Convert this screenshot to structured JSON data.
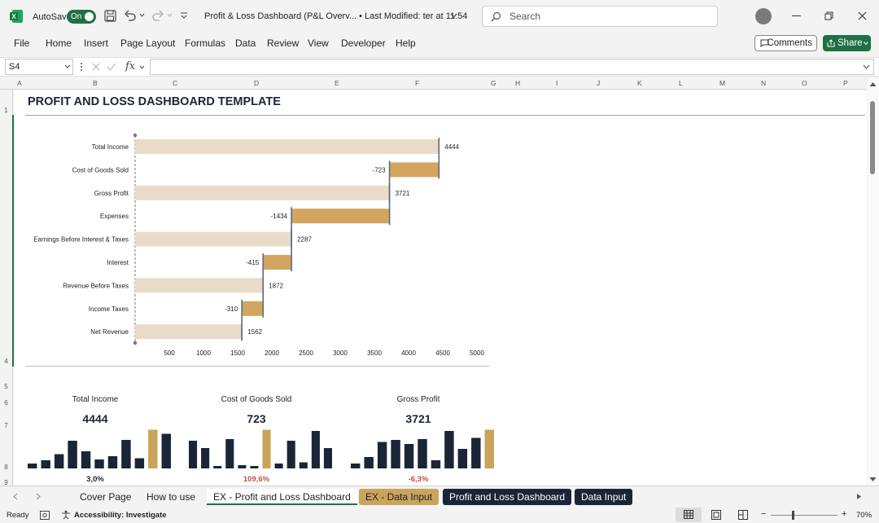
{
  "titlebar": {
    "autosave_label": "AutoSave",
    "autosave_state": "On",
    "doc_title": "Profit & Loss Dashboard (P&L Overv...  • Last Modified: ter at 11:54",
    "search_placeholder": "Search"
  },
  "menu": {
    "items": [
      "File",
      "Home",
      "Insert",
      "Page Layout",
      "Formulas",
      "Data",
      "Review",
      "View",
      "Developer",
      "Help"
    ],
    "comments_label": "Comments",
    "share_label": "Share"
  },
  "formula_bar": {
    "name_box": "S4",
    "fx_label": "fx",
    "formula": ""
  },
  "columns": [
    "A",
    "B",
    "C",
    "D",
    "E",
    "F",
    "G",
    "H",
    "I",
    "J",
    "K",
    "L",
    "M",
    "N",
    "O",
    "P"
  ],
  "rows": [
    "1",
    "4",
    "5",
    "6",
    "7",
    "8",
    "9"
  ],
  "sheet": {
    "title": "PROFIT AND LOSS DASHBOARD TEMPLATE"
  },
  "chart_data": {
    "type": "bar",
    "orientation": "horizontal-waterfall",
    "categories": [
      "Total Income",
      "Cost of Goods Sold",
      "Gross Profit",
      "Expenses",
      "Earnings Before Interest & Taxes",
      "Interest",
      "Revenue Before Taxes",
      "Income Taxes",
      "Net Revenue"
    ],
    "values": [
      4444,
      -723,
      3721,
      -1434,
      2287,
      -415,
      1872,
      -310,
      1562
    ],
    "value_labels": [
      "4444",
      "-723",
      "3721",
      "-1434",
      "2287",
      "-415",
      "1872",
      "-310",
      "1562"
    ],
    "ticks": [
      500,
      1000,
      1500,
      2000,
      2500,
      3000,
      3500,
      4000,
      4500,
      5000
    ],
    "xlim": [
      0,
      5000
    ],
    "colors": {
      "total": "#e8dcc8",
      "change": "#d3a55f",
      "connector": "#5a6b80"
    }
  },
  "kpis": [
    {
      "label": "Total Income",
      "value": "4444",
      "pct": "3,0%",
      "pct_color": "#1a2638",
      "bars": [
        0.12,
        0.2,
        0.35,
        0.68,
        0.42,
        0.22,
        0.3,
        0.7,
        0.25,
        0.95,
        0.85
      ],
      "highlight": 9
    },
    {
      "label": "Cost of Goods Sold",
      "value": "723",
      "pct": "109,6%",
      "pct_color": "#c0504d",
      "bars": [
        0.68,
        0.5,
        0.05,
        0.72,
        0.08,
        0.05,
        0.95,
        0.12,
        0.68,
        0.15,
        0.92,
        0.5
      ],
      "highlight": 6
    },
    {
      "label": "Gross Profit",
      "value": "3721",
      "pct": "-6,3%",
      "pct_color": "#c0504d",
      "bars": [
        0.12,
        0.28,
        0.65,
        0.7,
        0.6,
        0.72,
        0.2,
        0.92,
        0.48,
        0.75,
        0.95
      ],
      "highlight": 10
    }
  ],
  "tabs": [
    {
      "label": "Cover Page",
      "style": "plain"
    },
    {
      "label": "How to use",
      "style": "plain"
    },
    {
      "label": "EX - Profit and Loss Dashboard",
      "style": "active"
    },
    {
      "label": "EX - Data Input",
      "style": "gold"
    },
    {
      "label": "Profit and Loss Dashboard",
      "style": "navy"
    },
    {
      "label": "Data Input",
      "style": "navy"
    }
  ],
  "status": {
    "ready": "Ready",
    "accessibility": "Accessibility: Investigate",
    "zoom": "70%"
  }
}
